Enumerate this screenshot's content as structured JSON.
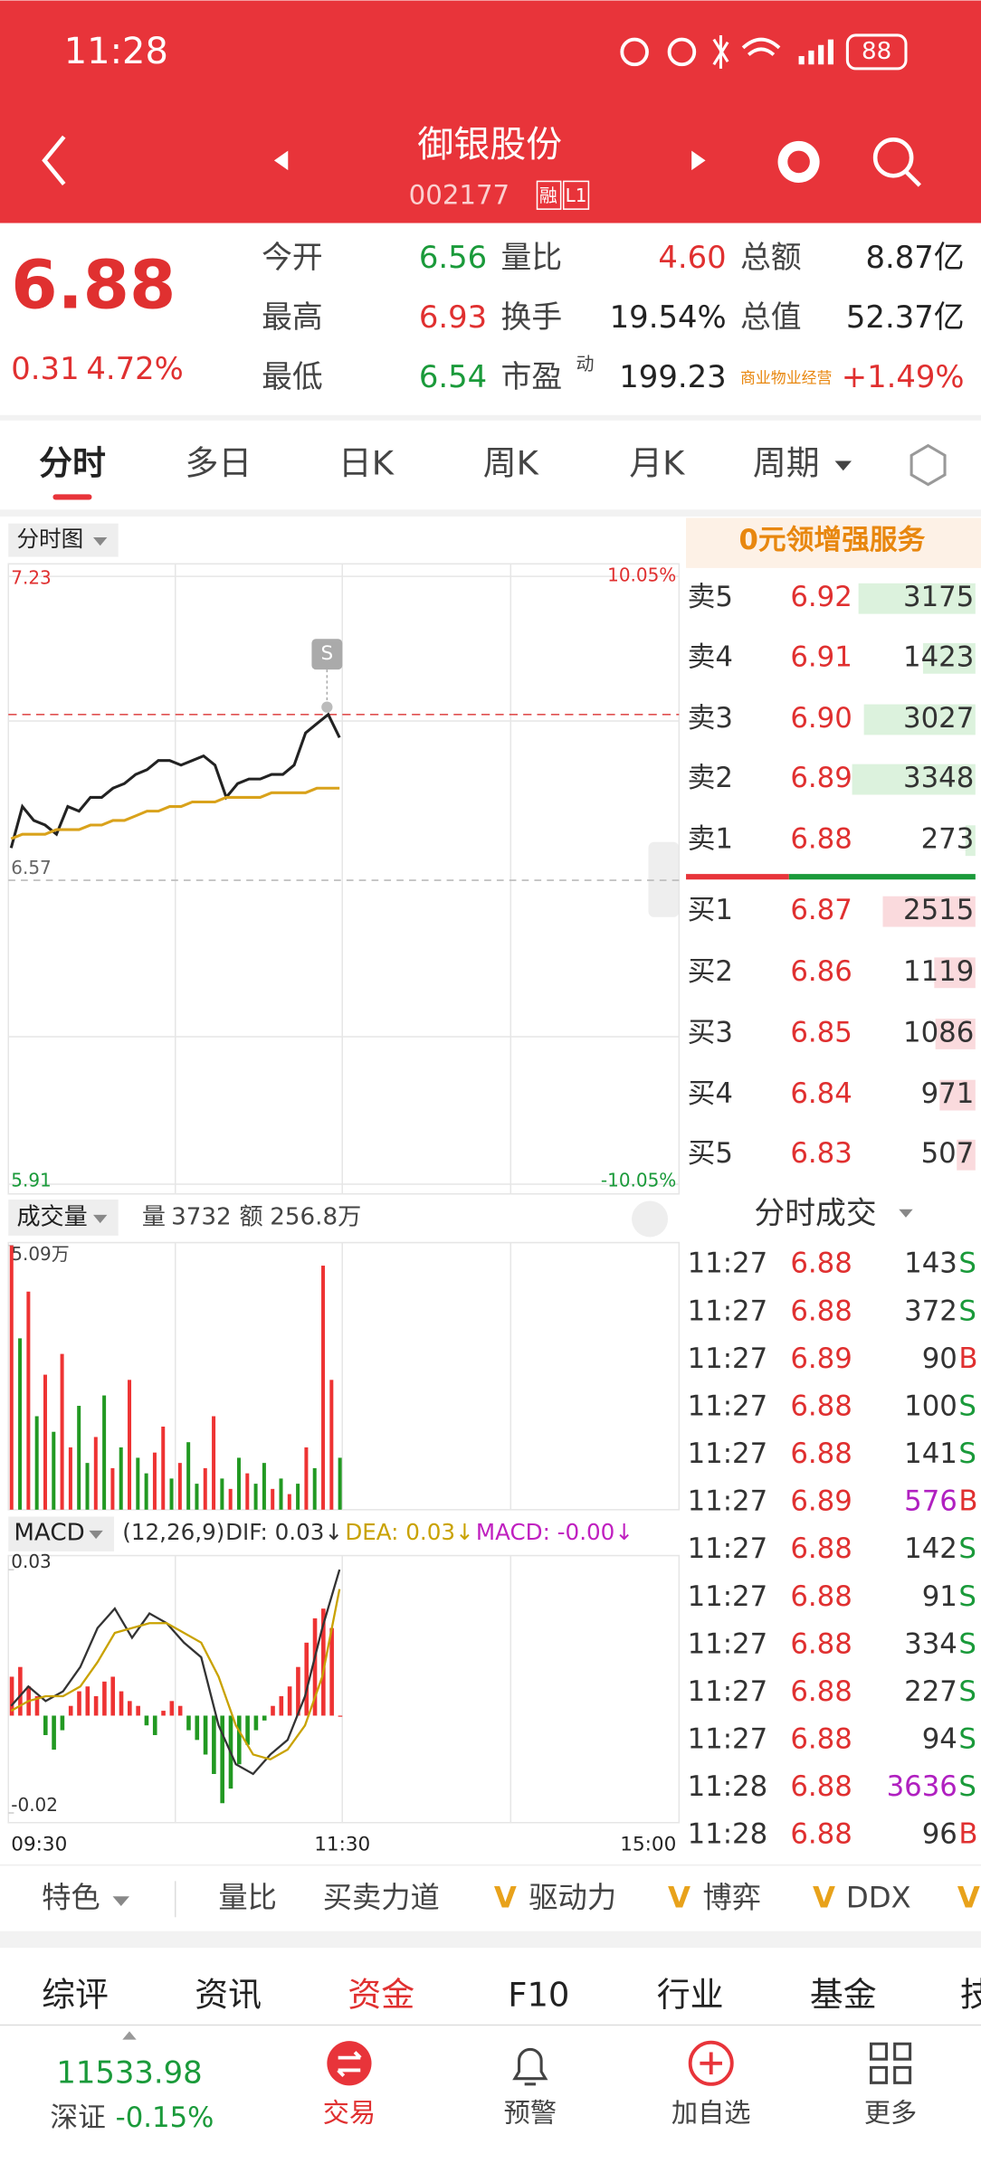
{
  "status_bar": {
    "time": "11:28",
    "battery": "88"
  },
  "header": {
    "title": "御银股份",
    "code": "002177",
    "badges": [
      "融",
      "L1"
    ]
  },
  "quote": {
    "price": "6.88",
    "change": "0.31",
    "change_pct": "4.72%",
    "pe_sup": "动",
    "stats": [
      [
        "今开",
        "6.56",
        "量比",
        "4.60",
        "总额",
        "8.87亿"
      ],
      [
        "最高",
        "6.93",
        "换手",
        "19.54%",
        "总值",
        "52.37亿"
      ],
      [
        "最低",
        "6.54",
        "市盈",
        "199.23",
        "商业物业经营",
        "+1.49%"
      ]
    ]
  },
  "tabs": [
    "分时",
    "多日",
    "日K",
    "周K",
    "月K",
    "周期"
  ],
  "intraday": {
    "type": "line",
    "title": "分时图",
    "marker": "S",
    "ylim": [
      5.91,
      7.23
    ],
    "yticks": [
      5.91,
      6.57,
      7.23
    ],
    "y2lim": [
      -10.05,
      10.05
    ],
    "y2ticks": [
      {
        "value": -10.05,
        "label": "-10.05%"
      },
      {
        "value": 10.05,
        "label": "10.05%"
      }
    ],
    "xticks": [
      "09:30",
      "11:30",
      "15:00"
    ],
    "series": [
      {
        "name": "price",
        "color": "#222222",
        "values": [
          6.64,
          6.73,
          6.7,
          6.69,
          6.67,
          6.73,
          6.72,
          6.75,
          6.75,
          6.77,
          6.78,
          6.8,
          6.81,
          6.83,
          6.83,
          6.82,
          6.83,
          6.84,
          6.82,
          6.75,
          6.78,
          6.79,
          6.79,
          6.8,
          6.8,
          6.82,
          6.89,
          6.91,
          6.93,
          6.88
        ]
      },
      {
        "name": "average",
        "color": "#d9a21b",
        "values": [
          6.66,
          6.67,
          6.67,
          6.67,
          6.68,
          6.68,
          6.68,
          6.69,
          6.69,
          6.7,
          6.7,
          6.71,
          6.72,
          6.72,
          6.73,
          6.73,
          6.74,
          6.74,
          6.74,
          6.75,
          6.75,
          6.75,
          6.75,
          6.76,
          6.76,
          6.76,
          6.76,
          6.77,
          6.77,
          6.77
        ]
      }
    ]
  },
  "volume": {
    "type": "bar",
    "title": "成交量",
    "vol_label": "量",
    "vol": "3732",
    "amt_label": "额",
    "amt": "256.8万",
    "ylim": [
      0,
      50900
    ],
    "yticks": [
      {
        "value": 50900,
        "label": "5.09万"
      }
    ],
    "values": [
      50900,
      33000,
      42000,
      18000,
      26000,
      15000,
      30000,
      12000,
      20000,
      9000,
      14000,
      22000,
      8000,
      12000,
      25000,
      10000,
      7000,
      11000,
      16000,
      6000,
      9000,
      13000,
      5000,
      8000,
      18000,
      6000,
      4000,
      10000,
      7000,
      5000,
      9000,
      4000,
      6000,
      3000,
      5000,
      12000,
      8000,
      47000,
      25000,
      10000
    ],
    "colors": [
      "#e33",
      "#292",
      "#e33",
      "#292",
      "#e33",
      "#292",
      "#e33",
      "#e33",
      "#292",
      "#292",
      "#e33",
      "#292",
      "#e33",
      "#292",
      "#e33",
      "#292",
      "#292",
      "#e33",
      "#e33",
      "#292",
      "#e33",
      "#292",
      "#292",
      "#e33",
      "#e33",
      "#292",
      "#e33",
      "#292",
      "#e33",
      "#292",
      "#292",
      "#e33",
      "#292",
      "#e33",
      "#292",
      "#e33",
      "#292",
      "#e33",
      "#e33",
      "#292"
    ]
  },
  "macd": {
    "type": "bar",
    "title": "MACD",
    "params": "(12,26,9)",
    "dif": "DIF: 0.03↓",
    "dea": "DEA: 0.03↓",
    "macd": "MACD: -0.00↓",
    "ylim": [
      -0.022,
      0.0329
    ],
    "yticks": [
      -0.02,
      0.03
    ],
    "values": [
      0.008,
      0.01,
      0.006,
      0.004,
      -0.004,
      -0.007,
      -0.003,
      0.002,
      0.005,
      0.006,
      0.004,
      0.007,
      0.008,
      0.005,
      0.003,
      0.002,
      -0.002,
      -0.004,
      0.001,
      0.003,
      0.002,
      -0.003,
      -0.005,
      -0.008,
      -0.012,
      -0.018,
      -0.015,
      -0.01,
      -0.006,
      -0.003,
      -0.001,
      0.002,
      0.004,
      0.006,
      0.01,
      0.015,
      0.02,
      0.022,
      0.018,
      0.0
    ],
    "series": [
      {
        "name": "DIF",
        "color": "#333333",
        "values": [
          0.002,
          0.006,
          0.003,
          0.005,
          0.01,
          0.018,
          0.022,
          0.016,
          0.021,
          0.019,
          0.015,
          0.012,
          -0.002,
          -0.01,
          -0.012,
          -0.008,
          -0.005,
          0.004,
          0.018,
          0.03
        ]
      },
      {
        "name": "DEA",
        "color": "#c9a200",
        "values": [
          0.001,
          0.003,
          0.004,
          0.004,
          0.006,
          0.011,
          0.017,
          0.018,
          0.019,
          0.019,
          0.017,
          0.015,
          0.008,
          -0.002,
          -0.008,
          -0.009,
          -0.007,
          -0.002,
          0.008,
          0.026
        ]
      }
    ]
  },
  "order_book": {
    "promo": "0元领增强服务",
    "sell": [
      {
        "label": "卖5",
        "price": "6.92",
        "volume": 3175
      },
      {
        "label": "卖4",
        "price": "6.91",
        "volume": 1423
      },
      {
        "label": "卖3",
        "price": "6.90",
        "volume": 3027
      },
      {
        "label": "卖2",
        "price": "6.89",
        "volume": 3348
      },
      {
        "label": "卖1",
        "price": "6.88",
        "volume": 273
      }
    ],
    "buy": [
      {
        "label": "买1",
        "price": "6.87",
        "volume": 2515
      },
      {
        "label": "买2",
        "price": "6.86",
        "volume": 1119
      },
      {
        "label": "买3",
        "price": "6.85",
        "volume": 1086
      },
      {
        "label": "买4",
        "price": "6.84",
        "volume": 971
      },
      {
        "label": "买5",
        "price": "6.83",
        "volume": 507
      }
    ]
  },
  "trades": {
    "title": "分时成交",
    "rows": [
      {
        "time": "11:27",
        "price": "6.88",
        "volume": 143,
        "side": "S"
      },
      {
        "time": "11:27",
        "price": "6.88",
        "volume": 372,
        "side": "S"
      },
      {
        "time": "11:27",
        "price": "6.89",
        "volume": 90,
        "side": "B"
      },
      {
        "time": "11:27",
        "price": "6.88",
        "volume": 100,
        "side": "S"
      },
      {
        "time": "11:27",
        "price": "6.88",
        "volume": 141,
        "side": "S"
      },
      {
        "time": "11:27",
        "price": "6.89",
        "volume": 576,
        "side": "B"
      },
      {
        "time": "11:27",
        "price": "6.88",
        "volume": 142,
        "side": "S"
      },
      {
        "time": "11:27",
        "price": "6.88",
        "volume": 91,
        "side": "S"
      },
      {
        "time": "11:27",
        "price": "6.88",
        "volume": 334,
        "side": "S"
      },
      {
        "time": "11:27",
        "price": "6.88",
        "volume": 227,
        "side": "S"
      },
      {
        "time": "11:27",
        "price": "6.88",
        "volume": 94,
        "side": "S"
      },
      {
        "time": "11:28",
        "price": "6.88",
        "volume": 3636,
        "side": "S"
      },
      {
        "time": "11:28",
        "price": "6.88",
        "volume": 96,
        "side": "B"
      }
    ]
  },
  "toolbar": [
    "特色",
    "量比",
    "买卖力道",
    "驱动力",
    "博弈",
    "DDX"
  ],
  "toolbar_v": "V",
  "section_tabs": [
    "综评",
    "资讯",
    "资金",
    "F10",
    "行业",
    "基金",
    "技"
  ],
  "nav": {
    "index_value": "11533.98",
    "index_name": "深证",
    "index_change": "-0.15%",
    "items": [
      "交易",
      "预警",
      "加自选",
      "更多"
    ]
  }
}
